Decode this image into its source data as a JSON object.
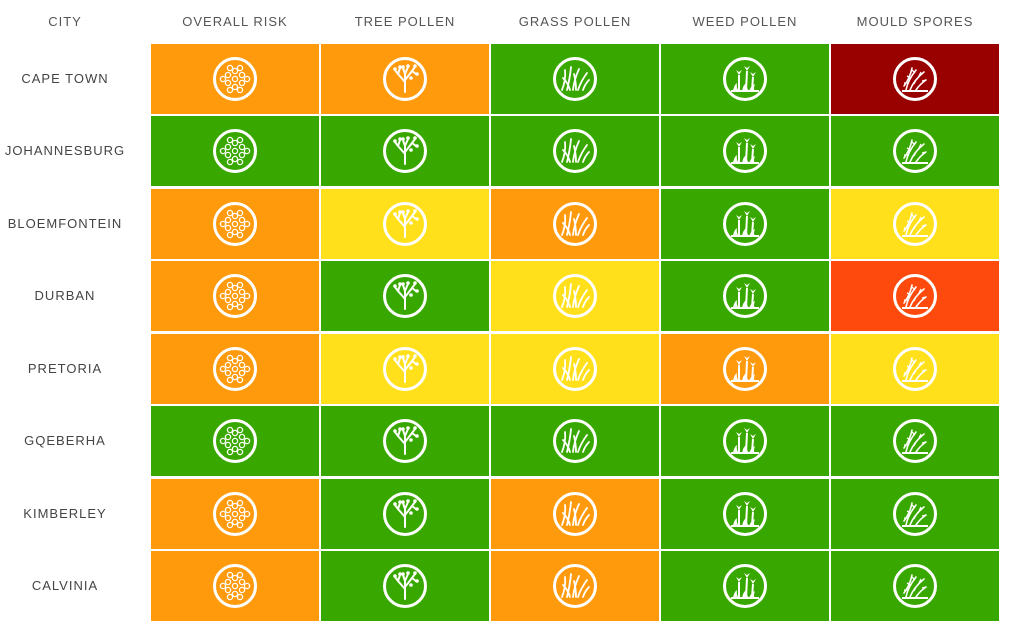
{
  "header": {
    "city": "CITY",
    "columns": [
      "OVERALL RISK",
      "TREE POLLEN",
      "GRASS POLLEN",
      "WEED POLLEN",
      "MOULD SPORES"
    ]
  },
  "column_icons": [
    "pollen-grain-icon",
    "tree-icon",
    "grass-icon",
    "weed-flower-icon",
    "mould-spores-icon"
  ],
  "level_colors": {
    "green": "#38a800",
    "yellow": "#ffe01a",
    "orange": "#ff9a0d",
    "red": "#ff4a0d",
    "dark-red": "#990000"
  },
  "rows": [
    {
      "city": "CAPE TOWN",
      "levels": [
        "orange",
        "orange",
        "green",
        "green",
        "dark-red"
      ]
    },
    {
      "city": "JOHANNESBURG",
      "levels": [
        "green",
        "green",
        "green",
        "green",
        "green"
      ]
    },
    {
      "city": "BLOEMFONTEIN",
      "levels": [
        "orange",
        "yellow",
        "orange",
        "green",
        "yellow"
      ]
    },
    {
      "city": "DURBAN",
      "levels": [
        "orange",
        "green",
        "yellow",
        "green",
        "red"
      ]
    },
    {
      "city": "PRETORIA",
      "levels": [
        "orange",
        "yellow",
        "yellow",
        "orange",
        "yellow"
      ]
    },
    {
      "city": "GQEBERHA",
      "levels": [
        "green",
        "green",
        "green",
        "green",
        "green"
      ]
    },
    {
      "city": "KIMBERLEY",
      "levels": [
        "orange",
        "green",
        "orange",
        "green",
        "green"
      ]
    },
    {
      "city": "CALVINIA",
      "levels": [
        "orange",
        "green",
        "orange",
        "green",
        "green"
      ]
    }
  ]
}
